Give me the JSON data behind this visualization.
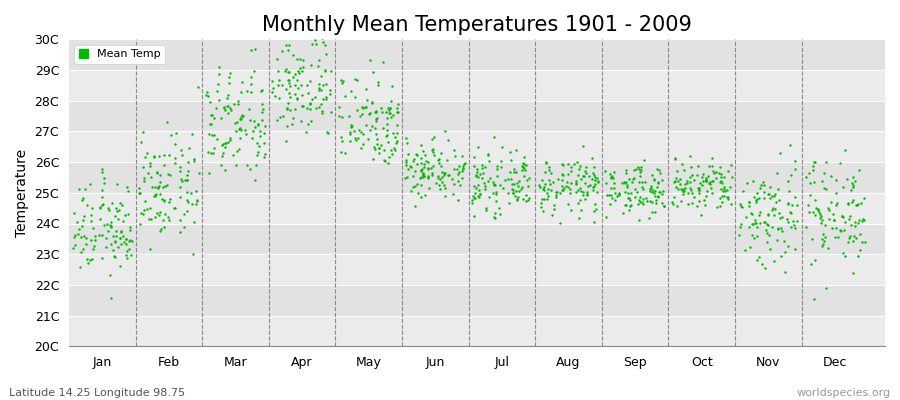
{
  "title": "Monthly Mean Temperatures 1901 - 2009",
  "ylabel": "Temperature",
  "xlabel_bottom_left": "Latitude 14.25 Longitude 98.75",
  "xlabel_bottom_right": "worldspecies.org",
  "legend_label": "Mean Temp",
  "dot_color": "#00BB00",
  "dot_size": 3,
  "ylim": [
    20,
    30
  ],
  "ytick_labels": [
    "20C",
    "21C",
    "22C",
    "23C",
    "24C",
    "25C",
    "26C",
    "27C",
    "28C",
    "29C",
    "30C"
  ],
  "month_names": [
    "Jan",
    "Feb",
    "Mar",
    "Apr",
    "May",
    "Jun",
    "Jul",
    "Aug",
    "Sep",
    "Oct",
    "Nov",
    "Dec"
  ],
  "background_color": "#EBEBEB",
  "alt_background_color": "#E0E0E0",
  "grid_color": "#FFFFFF",
  "dashed_line_color": "#888888",
  "title_fontsize": 15,
  "axis_label_fontsize": 10,
  "tick_fontsize": 9,
  "n_years": 109,
  "monthly_means": [
    23.8,
    25.1,
    27.2,
    28.5,
    27.4,
    25.8,
    25.3,
    25.2,
    25.1,
    25.2,
    24.3,
    24.4
  ],
  "monthly_stds": [
    0.75,
    0.85,
    0.95,
    0.9,
    0.8,
    0.5,
    0.45,
    0.45,
    0.4,
    0.45,
    0.9,
    0.9
  ]
}
